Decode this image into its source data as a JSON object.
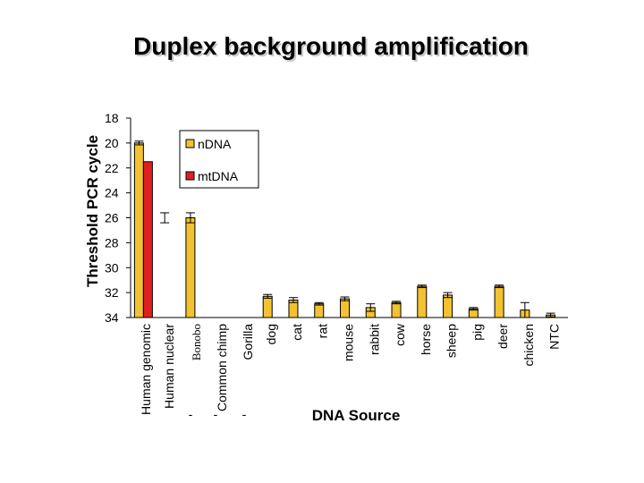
{
  "chart_data": {
    "type": "bar",
    "title": "Duplex background amplification",
    "ylabel": "Threshold PCR cycle",
    "xlabel": "DNA Source",
    "ylim": [
      18,
      34
    ],
    "y_inverted": true,
    "yticks": [
      18,
      20,
      22,
      24,
      26,
      28,
      30,
      32,
      34
    ],
    "categories": [
      "Human genomic",
      "Human nuclear",
      "Bonobo",
      "Common chimp",
      "Gorilla",
      "dog",
      "cat",
      "rat",
      "mouse",
      "rabbit",
      "cow",
      "horse",
      "sheep",
      "pig",
      "deer",
      "chicken",
      "NTC"
    ],
    "series": [
      {
        "name": "n​DNA",
        "color": "#f2c230",
        "values": [
          20.0,
          null,
          26.0,
          null,
          null,
          32.3,
          32.6,
          32.9,
          32.5,
          33.2,
          32.8,
          31.5,
          32.2,
          33.3,
          31.5,
          33.4,
          33.8
        ],
        "errors": [
          0.15,
          0.4,
          0.4,
          null,
          null,
          0.15,
          0.2,
          0.1,
          0.15,
          0.3,
          0.1,
          0.1,
          0.2,
          0.1,
          0.1,
          0.6,
          0.15
        ]
      },
      {
        "name": "mt​DNA",
        "color": "#e02020",
        "values": [
          21.5,
          null,
          null,
          null,
          null,
          null,
          null,
          null,
          null,
          null,
          null,
          null,
          null,
          null,
          null,
          null,
          null
        ]
      }
    ],
    "legend_position": "top-right",
    "annotations": [
      "-",
      "-",
      "-"
    ]
  },
  "series_labels": [
    "nDNA",
    "mtDNA"
  ]
}
